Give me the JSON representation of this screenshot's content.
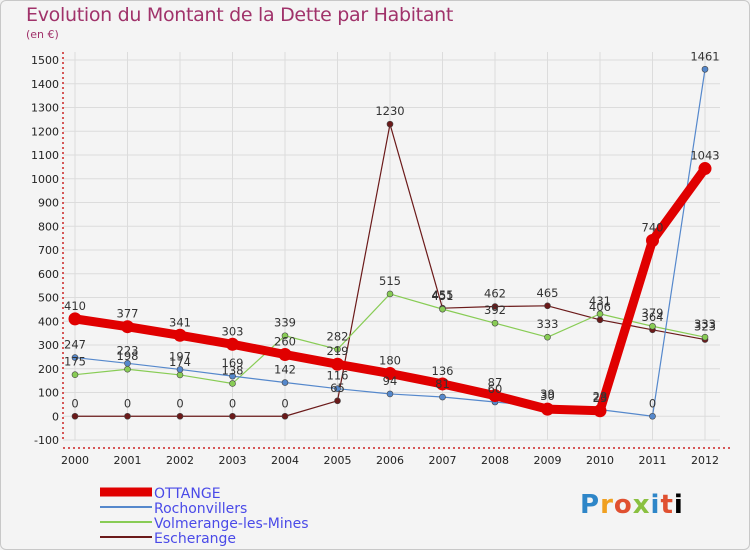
{
  "title": "Evolution du Montant de la Dette par Habitant",
  "subtitle": "(en €)",
  "logo": [
    "P",
    "r",
    "o",
    "x",
    "i",
    "t",
    "i"
  ],
  "colors": {
    "title": "#a0326a",
    "axis_tick_labels": "#222222",
    "grid_tick": "#cc2222"
  },
  "chart_data": {
    "type": "line",
    "ylim": [
      -100,
      1500
    ],
    "yticks": [
      -100,
      0,
      100,
      200,
      300,
      400,
      500,
      600,
      700,
      800,
      900,
      1000,
      1100,
      1200,
      1300,
      1400,
      1500
    ],
    "x": [
      "2000",
      "2001",
      "2002",
      "2003",
      "2004",
      "2005",
      "2006",
      "2007",
      "2008",
      "2009",
      "2010",
      "2011",
      "2012"
    ],
    "series": [
      {
        "name": "OTTANGE",
        "color": "#e00000",
        "values": [
          410,
          377,
          341,
          303,
          260,
          219,
          180,
          136,
          87,
          30,
          23,
          740,
          1043
        ],
        "labels": [
          "410",
          "377",
          "341",
          "303",
          "260",
          "219",
          "180",
          "136",
          "87",
          "30",
          "23",
          "740",
          "1043"
        ]
      },
      {
        "name": "Rochonvillers",
        "color": "#5588cc",
        "values": [
          247,
          223,
          197,
          169,
          142,
          116,
          94,
          81,
          60,
          39,
          28,
          0,
          1461
        ],
        "labels": [
          "247",
          "223",
          "197",
          "169",
          "142",
          "116",
          "94",
          "81",
          "60",
          "39",
          "28",
          "0",
          "1461"
        ]
      },
      {
        "name": "Volmerange-les-Mines",
        "color": "#88cc55",
        "values": [
          175,
          198,
          174,
          138,
          339,
          282,
          515,
          451,
          392,
          333,
          431,
          379,
          333
        ],
        "labels": [
          "175",
          "198",
          "174",
          "138",
          "339",
          "282",
          "515",
          "451",
          "392",
          "333",
          "431",
          "379",
          "333"
        ]
      },
      {
        "name": "Escherange",
        "color": "#6b1a1a",
        "values": [
          0,
          0,
          0,
          0,
          0,
          65,
          1230,
          455,
          462,
          465,
          406,
          364,
          323
        ],
        "labels": [
          "0",
          "0",
          "0",
          "0",
          "0",
          "65",
          "1230",
          "455",
          "462",
          "465",
          "406",
          "364",
          "323"
        ]
      }
    ]
  }
}
